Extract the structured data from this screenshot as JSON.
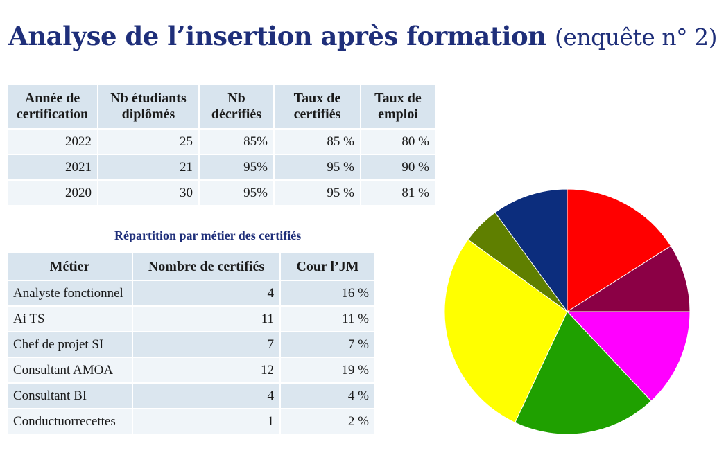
{
  "title": "Analyse de l’insertion après formation",
  "title_suffix": "(enquête n° 2)",
  "table1": {
    "headers": [
      "Année de certification",
      "Nb étudiants diplômés",
      "Nb décrifiés",
      "Taux de certifiés",
      "Taux de emploi"
    ],
    "rows": [
      [
        "2022",
        "25",
        "85%",
        "85 %",
        "80 %"
      ],
      [
        "2021",
        "21",
        "95%",
        "95 %",
        "90 %"
      ],
      [
        "2020",
        "30",
        "95%",
        "95 %",
        "81 %"
      ]
    ]
  },
  "subtitle": "Répartition par métier des certifiés",
  "table2": {
    "headers": [
      "Métier",
      "Nombre de certifiés",
      "Cour l’JM"
    ],
    "rows": [
      [
        "Analyste fonctionnel",
        "4",
        "16 %"
      ],
      [
        "Ai TS",
        "11",
        "11 %"
      ],
      [
        "Chef de projet SI",
        "7",
        "7 %"
      ],
      [
        "Consultant AMOA",
        "12",
        "19 %"
      ],
      [
        "Consultant BI",
        "4",
        "4 %"
      ],
      [
        "Conductuorrecettes",
        "1",
        "2 %"
      ]
    ]
  },
  "chart_data": {
    "type": "pie",
    "title": "",
    "slices": [
      {
        "value": 16,
        "color": "#ff0000"
      },
      {
        "value": 9,
        "color": "#8b0045"
      },
      {
        "value": 13,
        "color": "#ff00ff"
      },
      {
        "value": 19,
        "color": "#1fa000"
      },
      {
        "value": 28,
        "color": "#ffff00"
      },
      {
        "value": 5,
        "color": "#5f7f00"
      },
      {
        "value": 10,
        "color": "#0c2d7d"
      }
    ]
  }
}
